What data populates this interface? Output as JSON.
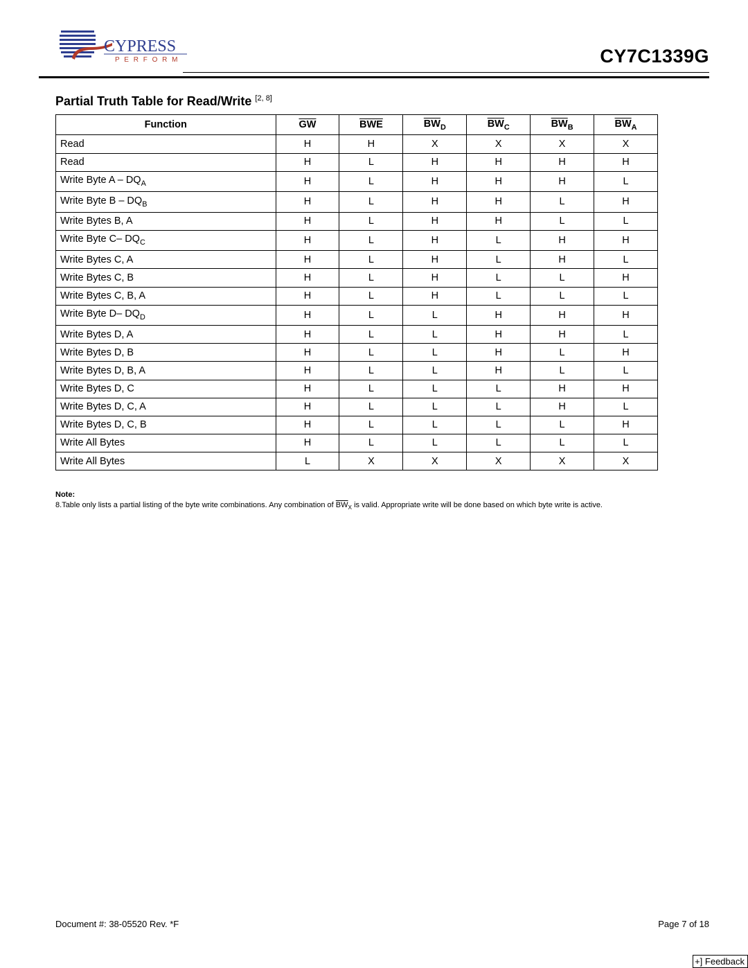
{
  "header": {
    "logo": {
      "brand": "CYPRESS",
      "tagline": "P E R F O R M",
      "brand_color": "#2e3d8f",
      "tagline_color": "#b23a2a",
      "globe_color": "#2e3d8f"
    },
    "part_number": "CY7C1339G"
  },
  "section": {
    "title_main": "Partial Truth Table for Read/Write",
    "title_refs": "[2, 8]"
  },
  "table": {
    "columns": [
      {
        "label": "Function",
        "overline": false,
        "sub": ""
      },
      {
        "label": "GW",
        "overline": true,
        "sub": ""
      },
      {
        "label": "BWE",
        "overline": true,
        "sub": ""
      },
      {
        "label": "BW",
        "overline": true,
        "sub": "D"
      },
      {
        "label": "BW",
        "overline": true,
        "sub": "C"
      },
      {
        "label": "BW",
        "overline": true,
        "sub": "B"
      },
      {
        "label": "BW",
        "overline": true,
        "sub": "A"
      }
    ],
    "rows": [
      {
        "func": "Read",
        "vals": [
          "H",
          "H",
          "X",
          "X",
          "X",
          "X"
        ]
      },
      {
        "func": "Read",
        "vals": [
          "H",
          "L",
          "H",
          "H",
          "H",
          "H"
        ]
      },
      {
        "func": "Write Byte A  – DQ",
        "sub": "A",
        "vals": [
          "H",
          "L",
          "H",
          "H",
          "H",
          "L"
        ]
      },
      {
        "func": "Write Byte B – DQ",
        "sub": "B",
        "vals": [
          "H",
          "L",
          "H",
          "H",
          "L",
          "H"
        ]
      },
      {
        "func": "Write Bytes B, A",
        "vals": [
          "H",
          "L",
          "H",
          "H",
          "L",
          "L"
        ]
      },
      {
        "func": "Write Byte C– DQ",
        "sub": "C",
        "vals": [
          "H",
          "L",
          "H",
          "L",
          "H",
          "H"
        ]
      },
      {
        "func": "Write Bytes C, A",
        "vals": [
          "H",
          "L",
          "H",
          "L",
          "H",
          "L"
        ]
      },
      {
        "func": "Write Bytes C, B",
        "vals": [
          "H",
          "L",
          "H",
          "L",
          "L",
          "H"
        ]
      },
      {
        "func": "Write Bytes C, B, A",
        "vals": [
          "H",
          "L",
          "H",
          "L",
          "L",
          "L"
        ]
      },
      {
        "func": "Write Byte D– DQ",
        "sub": "D",
        "vals": [
          "H",
          "L",
          "L",
          "H",
          "H",
          "H"
        ]
      },
      {
        "func": "Write Bytes D, A",
        "vals": [
          "H",
          "L",
          "L",
          "H",
          "H",
          "L"
        ]
      },
      {
        "func": "Write Bytes D, B",
        "vals": [
          "H",
          "L",
          "L",
          "H",
          "L",
          "H"
        ]
      },
      {
        "func": "Write Bytes D, B, A",
        "vals": [
          "H",
          "L",
          "L",
          "H",
          "L",
          "L"
        ]
      },
      {
        "func": "Write Bytes D, C",
        "vals": [
          "H",
          "L",
          "L",
          "L",
          "H",
          "H"
        ]
      },
      {
        "func": "Write Bytes D, C, A",
        "vals": [
          "H",
          "L",
          "L",
          "L",
          "H",
          "L"
        ]
      },
      {
        "func": "Write Bytes D, C, B",
        "vals": [
          "H",
          "L",
          "L",
          "L",
          "L",
          "H"
        ]
      },
      {
        "func": "Write All Bytes",
        "vals": [
          "H",
          "L",
          "L",
          "L",
          "L",
          "L"
        ]
      },
      {
        "func": "Write All Bytes",
        "vals": [
          "L",
          "X",
          "X",
          "X",
          "X",
          "X"
        ]
      }
    ]
  },
  "note": {
    "header": "Note:",
    "item_num": "8.",
    "text_before": "Table only lists a partial listing of the byte write combinations. Any combination of ",
    "bw_label": "BW",
    "bw_sub": "X",
    "text_after": " is valid. Appropriate write will be done based on which byte write is active."
  },
  "footer": {
    "doc": "Document #: 38-05520 Rev. *F",
    "page": "Page 7 of 18",
    "feedback": "+] Feedback"
  }
}
